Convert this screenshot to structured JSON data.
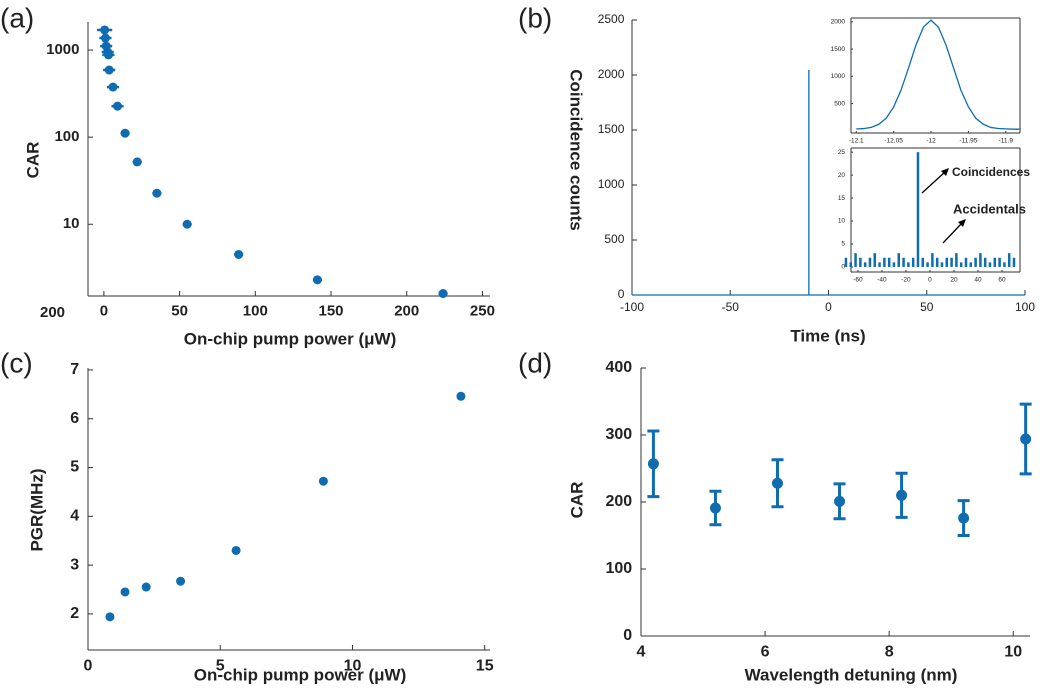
{
  "chart_data": [
    {
      "type": "scatter",
      "panel_label": "(a)",
      "xlabel": "On-chip pump power (μW)",
      "ylabel": "CAR",
      "log_y": true,
      "color": "#0f6cb0",
      "x": [
        0.5,
        1,
        1.5,
        2.5,
        3,
        3.5,
        6,
        9,
        14,
        22,
        35,
        55,
        89,
        141,
        224
      ],
      "values": [
        1700,
        1375,
        1110,
        950,
        880,
        590,
        376,
        227,
        111,
        52,
        22.7,
        10,
        4.5,
        2.3,
        1.6
      ],
      "xerr": [
        5,
        4,
        4,
        4,
        4,
        4,
        4,
        4,
        3,
        3,
        3,
        3,
        3,
        3,
        3
      ],
      "xlim": [
        -10.5,
        255
      ],
      "ylim": [
        1.5,
        2100
      ],
      "xticks": [
        0,
        50,
        100,
        150,
        200,
        250
      ],
      "yticks": [
        10,
        100,
        1000
      ],
      "annotations": [
        "200"
      ]
    },
    {
      "type": "line",
      "panel_label": "(b)",
      "xlabel": "Time (ns)",
      "ylabel": "Coincidence counts",
      "color": "#0f6cb0",
      "x": [
        -100,
        -10,
        -10,
        -10,
        100
      ],
      "values": [
        0,
        0,
        2045,
        0,
        0
      ],
      "xlim": [
        -100,
        100
      ],
      "ylim": [
        0,
        2500
      ],
      "xticks": [
        -100,
        -50,
        0,
        50,
        100
      ],
      "yticks": [
        0,
        500,
        1000,
        1500,
        2000,
        2500
      ]
    },
    {
      "type": "line",
      "color": "#0f6cb0",
      "x": [
        -12.1,
        -12.09,
        -12.08,
        -12.07,
        -12.06,
        -12.05,
        -12.04,
        -12.03,
        -12.02,
        -12.01,
        -12.0,
        -11.99,
        -11.98,
        -11.97,
        -11.96,
        -11.95,
        -11.94,
        -11.93,
        -11.92,
        -11.91,
        -11.9,
        -11.89,
        -11.88
      ],
      "values": [
        33,
        41,
        64,
        118,
        230,
        436,
        750,
        1156,
        1580,
        1906,
        2030,
        1900,
        1575,
        1160,
        745,
        440,
        228,
        120,
        62,
        42,
        35,
        30,
        30
      ],
      "xlim": [
        -12.107,
        -11.881
      ],
      "ylim": [
        -40,
        2070
      ],
      "xticks": [
        -12.1,
        -12.05,
        -12,
        -11.95,
        -11.9
      ],
      "yticks": [
        500,
        1000,
        1500,
        2000
      ]
    },
    {
      "type": "bar",
      "color": "#0f6cb0",
      "x": [
        -70,
        -66,
        -62,
        -58,
        -54,
        -50,
        -46,
        -42,
        -38,
        -34,
        -30,
        -26,
        -22,
        -18,
        -14,
        -10,
        -6,
        -2,
        2,
        6,
        10,
        14,
        18,
        22,
        26,
        30,
        34,
        38,
        42,
        46,
        50,
        54,
        58,
        62,
        66,
        70
      ],
      "values": [
        2,
        1,
        3,
        2,
        1,
        2,
        3,
        1,
        2,
        2,
        1,
        3,
        2,
        1,
        2,
        25,
        2,
        1,
        3,
        2,
        1,
        2,
        2,
        3,
        1,
        2,
        1,
        2,
        3,
        2,
        1,
        2,
        2,
        1,
        3,
        2
      ],
      "xlim": [
        -65.8,
        75
      ],
      "ylim": [
        -1.1,
        25.9
      ],
      "xticks": [
        -60,
        -40,
        -20,
        0,
        20,
        40,
        60
      ],
      "yticks": [
        0,
        5,
        10,
        15,
        20,
        25
      ],
      "annotations": [
        "Coincidences",
        "Accidentals"
      ]
    },
    {
      "type": "scatter",
      "panel_label": "(c)",
      "xlabel": "On-chip pump power (μW)",
      "ylabel": "PGR(MHz)",
      "color": "#0f6cb0",
      "x": [
        0.83,
        1.4,
        2.2,
        3.5,
        5.6,
        8.9,
        14.1
      ],
      "values": [
        1.94,
        2.45,
        2.55,
        2.67,
        3.3,
        4.72,
        6.46
      ],
      "xlim": [
        0,
        15.2
      ],
      "ylim": [
        1.26,
        7.04
      ],
      "xticks": [
        0,
        5,
        10,
        15
      ],
      "yticks": [
        2,
        3,
        4,
        5,
        6,
        7
      ]
    },
    {
      "type": "scatter",
      "panel_label": "(d)",
      "xlabel": "Wavelength detuning (nm)",
      "ylabel": "CAR",
      "color": "#0f6cb0",
      "x": [
        4.2,
        5.2,
        6.2,
        7.2,
        8.2,
        9.2,
        10.2
      ],
      "values": [
        257,
        191,
        228,
        201,
        210,
        176,
        294
      ],
      "yerr": [
        49,
        25,
        35,
        26,
        33,
        26,
        52
      ],
      "xlim": [
        4,
        10.27
      ],
      "ylim": [
        0,
        400
      ],
      "xticks": [
        4,
        6,
        8,
        10
      ],
      "yticks": [
        0,
        100,
        200,
        300,
        400
      ]
    }
  ]
}
